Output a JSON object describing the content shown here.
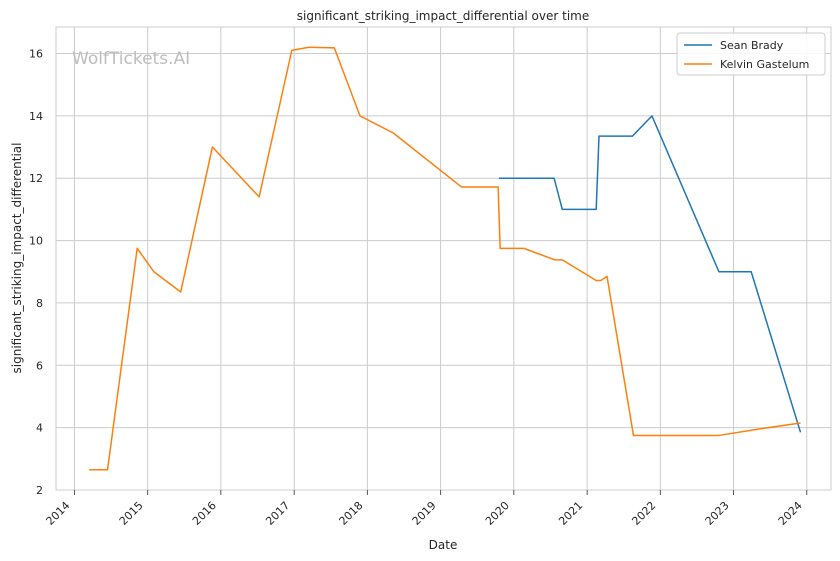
{
  "watermark": "WolfTickets.AI",
  "chart_data": {
    "type": "line",
    "title": "significant_striking_impact_differential over time",
    "xlabel": "Date",
    "ylabel": "significant_striking_impact_differential",
    "x_ticks": [
      "2014",
      "2015",
      "2016",
      "2017",
      "2018",
      "2019",
      "2020",
      "2021",
      "2022",
      "2023",
      "2024"
    ],
    "y_ticks": [
      2,
      4,
      6,
      8,
      10,
      12,
      14,
      16
    ],
    "xlim": [
      "2013-10-01",
      "2024-05-01"
    ],
    "ylim": [
      2,
      16.85
    ],
    "grid": true,
    "legend_position": "top-right",
    "series": [
      {
        "name": "Sean Brady",
        "color": "#1f77b4",
        "points": [
          [
            "2019-10-19",
            12.0
          ],
          [
            "2020-07-20",
            12.0
          ],
          [
            "2020-08-30",
            11.0
          ],
          [
            "2021-02-15",
            11.0
          ],
          [
            "2021-03-01",
            13.35
          ],
          [
            "2021-08-15",
            13.35
          ],
          [
            "2021-11-20",
            14.0
          ],
          [
            "2022-10-20",
            9.0
          ],
          [
            "2023-03-30",
            9.0
          ],
          [
            "2023-12-01",
            3.85
          ]
        ]
      },
      {
        "name": "Kelvin Gastelum",
        "color": "#ff7f0e",
        "points": [
          [
            "2014-03-15",
            2.65
          ],
          [
            "2014-06-15",
            2.65
          ],
          [
            "2014-11-10",
            9.75
          ],
          [
            "2015-02-01",
            9.0
          ],
          [
            "2015-06-15",
            8.35
          ],
          [
            "2015-11-20",
            13.0
          ],
          [
            "2016-07-10",
            11.4
          ],
          [
            "2016-12-20",
            16.1
          ],
          [
            "2017-03-15",
            16.2
          ],
          [
            "2017-07-20",
            16.18
          ],
          [
            "2017-11-25",
            14.0
          ],
          [
            "2018-05-10",
            13.45
          ],
          [
            "2019-04-15",
            11.72
          ],
          [
            "2019-10-15",
            11.72
          ],
          [
            "2019-10-25",
            9.75
          ],
          [
            "2020-02-20",
            9.75
          ],
          [
            "2020-07-25",
            9.38
          ],
          [
            "2020-08-30",
            9.38
          ],
          [
            "2021-02-15",
            8.72
          ],
          [
            "2021-03-10",
            8.72
          ],
          [
            "2021-04-10",
            8.85
          ],
          [
            "2021-08-20",
            3.75
          ],
          [
            "2022-10-20",
            3.75
          ],
          [
            "2023-05-01",
            3.95
          ],
          [
            "2023-12-01",
            4.15
          ]
        ]
      }
    ]
  }
}
